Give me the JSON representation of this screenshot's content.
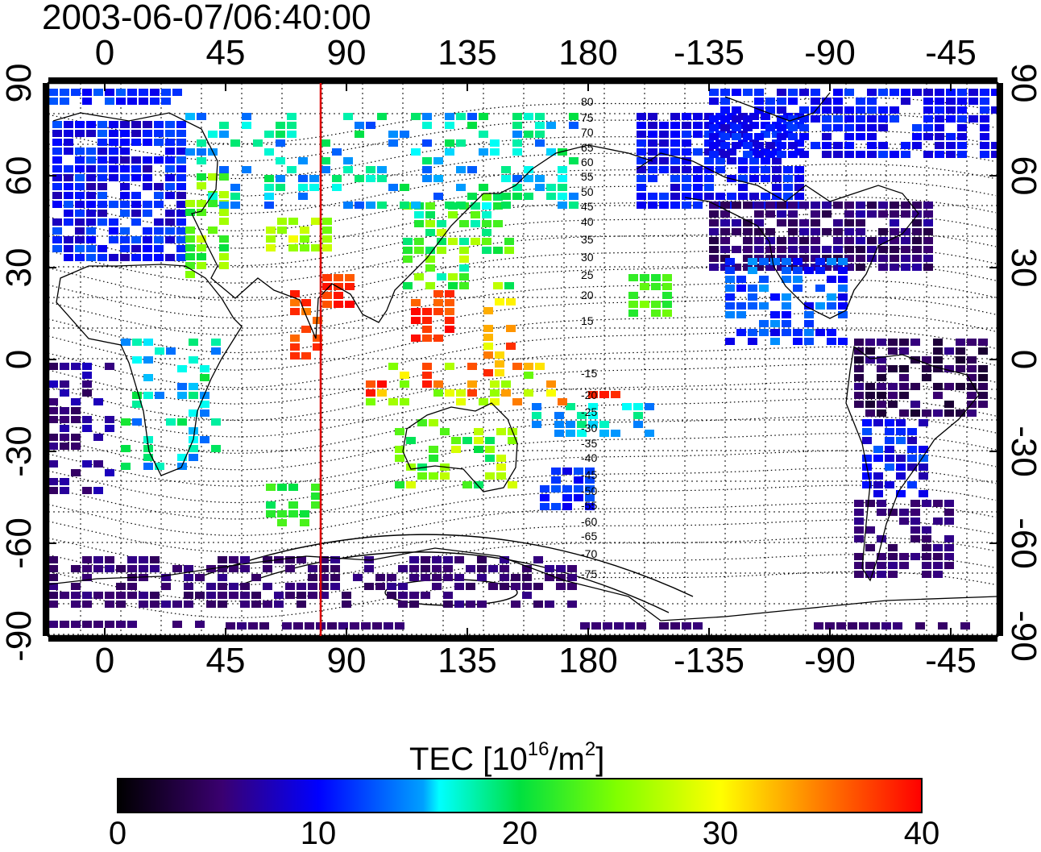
{
  "title": "2003-06-07/06:40:00",
  "map": {
    "top_ticks": [
      "0",
      "45",
      "90",
      "135",
      "180",
      "-135",
      "-90",
      "-45"
    ],
    "bottom_ticks": [
      "0",
      "45",
      "90",
      "135",
      "180",
      "-135",
      "-90",
      "-45"
    ],
    "left_ticks": [
      "90",
      "60",
      "30",
      "0",
      "-30",
      "-60",
      "-90"
    ],
    "right_ticks": [
      "90",
      "60",
      "30",
      "0",
      "-30",
      "-60",
      "-90"
    ],
    "contour_labels_north": [
      "80",
      "75",
      "70",
      "65",
      "60",
      "55",
      "50",
      "45",
      "40",
      "35",
      "30",
      "25",
      "20",
      "15"
    ],
    "contour_labels_south": [
      "-15",
      "-20",
      "-25",
      "-30",
      "-35",
      "-40",
      "-45",
      "-50",
      "-55",
      "-60",
      "-65",
      "-70",
      "-75"
    ],
    "marker_line_color": "#dd0000",
    "grid": "dotted"
  },
  "colorbar": {
    "title_prefix": "TEC  [10",
    "title_exp": "16",
    "title_unit": "/m",
    "title_unit_exp": "2",
    "title_suffix": "]",
    "ticks": [
      "0",
      "10",
      "20",
      "30",
      "40"
    ],
    "range": [
      0,
      40
    ]
  }
}
